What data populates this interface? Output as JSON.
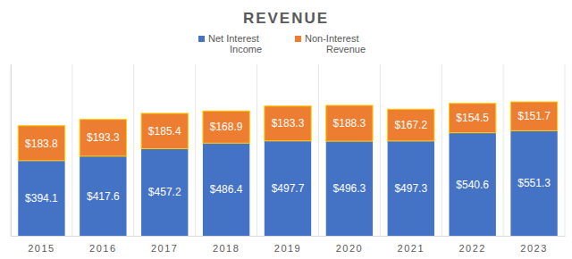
{
  "chart_data": {
    "type": "bar",
    "title": "REVENUE",
    "categories": [
      "2015",
      "2016",
      "2017",
      "2018",
      "2019",
      "2020",
      "2021",
      "2022",
      "2023"
    ],
    "series": [
      {
        "name": "Net Interest Income",
        "color": "#4472c4",
        "values": [
          394.1,
          417.6,
          457.2,
          486.4,
          497.7,
          496.3,
          497.3,
          540.6,
          551.3
        ],
        "value_labels": [
          "$394.1",
          "$417.6",
          "$457.2",
          "$486.4",
          "$497.7",
          "$496.3",
          "$497.3",
          "$540.6",
          "$551.3"
        ]
      },
      {
        "name": "Non-Interest Revenue",
        "color": "#ed7d31",
        "values": [
          183.8,
          193.3,
          185.4,
          168.9,
          183.3,
          188.3,
          167.2,
          154.5,
          151.7
        ],
        "value_labels": [
          "$183.8",
          "$193.3",
          "$185.4",
          "$168.9",
          "$183.3",
          "$188.3",
          "$167.2",
          "$154.5",
          "$151.7"
        ]
      }
    ],
    "ylim": [
      0,
      900
    ],
    "stacked": true,
    "data_labels": true,
    "legend": "top",
    "grid": true,
    "tick_labels": "x"
  }
}
